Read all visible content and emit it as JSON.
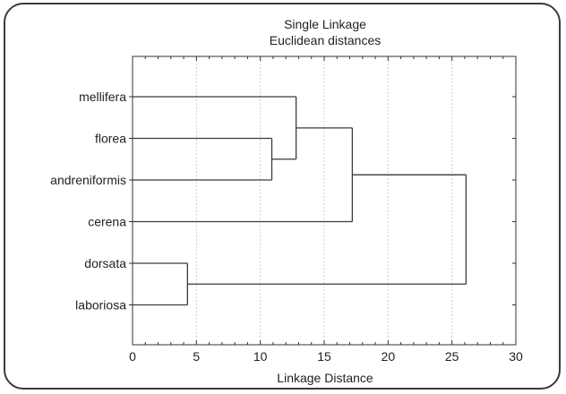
{
  "chart_data": {
    "type": "dendrogram",
    "title": "Single Linkage",
    "subtitle": "Euclidean distances",
    "xlabel": "Linkage Distance",
    "xlim": [
      0,
      30
    ],
    "xticks": [
      0,
      5,
      10,
      15,
      20,
      25,
      30
    ],
    "grid": true,
    "leaves": [
      "mellifera",
      "florea",
      "andreniformis",
      "cerena",
      "dorsata",
      "laboriosa"
    ],
    "merges": [
      {
        "a": "dorsata",
        "b": "laboriosa",
        "distance": 4.3
      },
      {
        "a": "florea",
        "b": "andreniformis",
        "distance": 10.9
      },
      {
        "a": "mellifera",
        "b": "florea+andreniformis",
        "distance": 12.8
      },
      {
        "a": "mellifera+florea+andreniformis",
        "b": "cerena",
        "distance": 17.2
      },
      {
        "a": "mellifera+florea+andreniformis+cerena",
        "b": "dorsata+laboriosa",
        "distance": 26.1
      }
    ]
  }
}
